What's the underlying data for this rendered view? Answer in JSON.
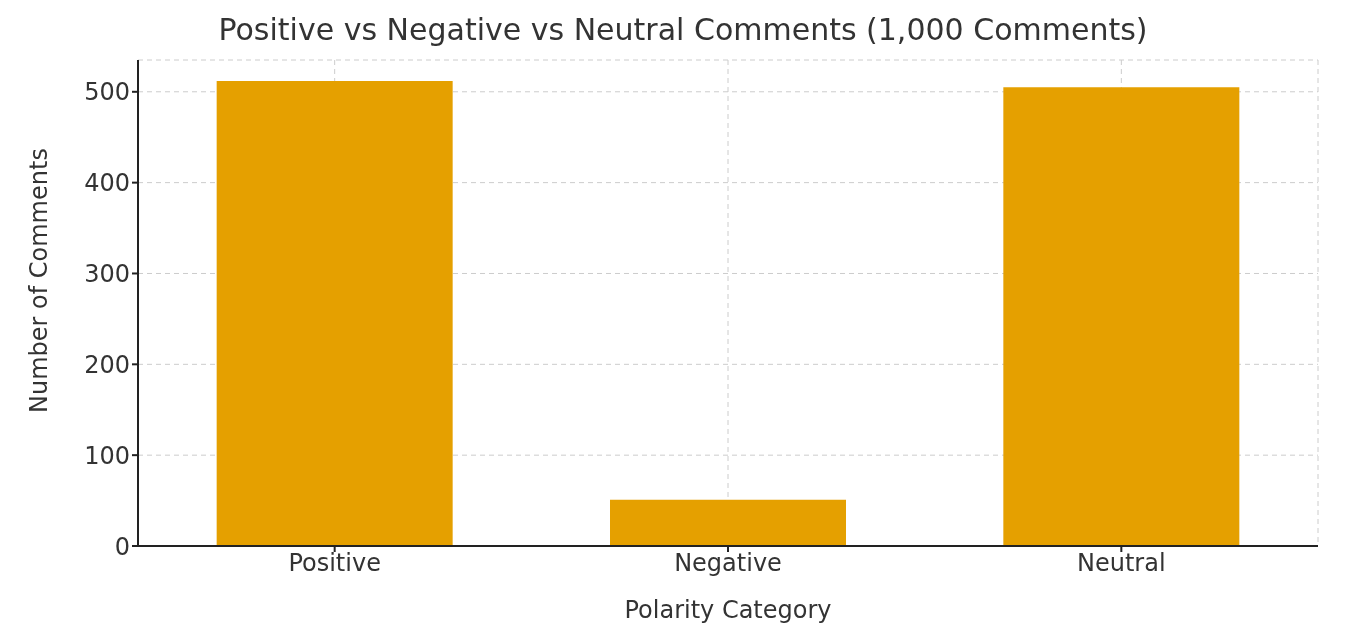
{
  "chart_data": {
    "type": "bar",
    "title": "Positive vs Negative vs Neutral Comments (1,000 Comments)",
    "xlabel": "Polarity Category",
    "ylabel": "Number of Comments",
    "categories": [
      "Positive",
      "Negative",
      "Neutral"
    ],
    "values": [
      512,
      51,
      505
    ],
    "color": "#e5a000",
    "ylim": [
      0,
      535
    ],
    "yticks": [
      0,
      100,
      200,
      300,
      400,
      500
    ],
    "grid": true
  }
}
